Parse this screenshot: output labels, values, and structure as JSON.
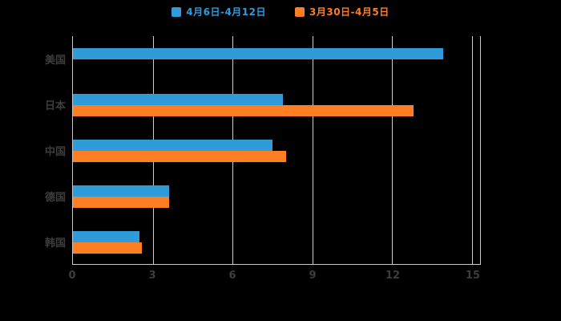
{
  "legend": {
    "items": [
      {
        "label": "4月6日-4月12日",
        "color": "#2f9bd8"
      },
      {
        "label": "3月30日-4月5日",
        "color": "#fd7e23"
      }
    ]
  },
  "chart_data": {
    "type": "bar",
    "orientation": "horizontal",
    "title": "",
    "xlabel": "",
    "ylabel": "",
    "categories": [
      "美国",
      "日本",
      "中国",
      "德国",
      "韩国"
    ],
    "series": [
      {
        "name": "4月6日-4月12日",
        "color": "#2f9bd8",
        "values": [
          13.9,
          7.9,
          7.5,
          3.6,
          2.5
        ]
      },
      {
        "name": "3月30日-4月5日",
        "color": "#fd7e23",
        "values": [
          0,
          12.8,
          8.0,
          3.6,
          2.6
        ]
      }
    ],
    "xticks": [
      0,
      3,
      6,
      9,
      12,
      15
    ],
    "xlim": [
      0,
      15.3
    ],
    "grid": true,
    "legend_position": "top",
    "background": "#000000",
    "axis_text_color": "#3d3d3d",
    "gridline_color": "#cfcfcf"
  }
}
